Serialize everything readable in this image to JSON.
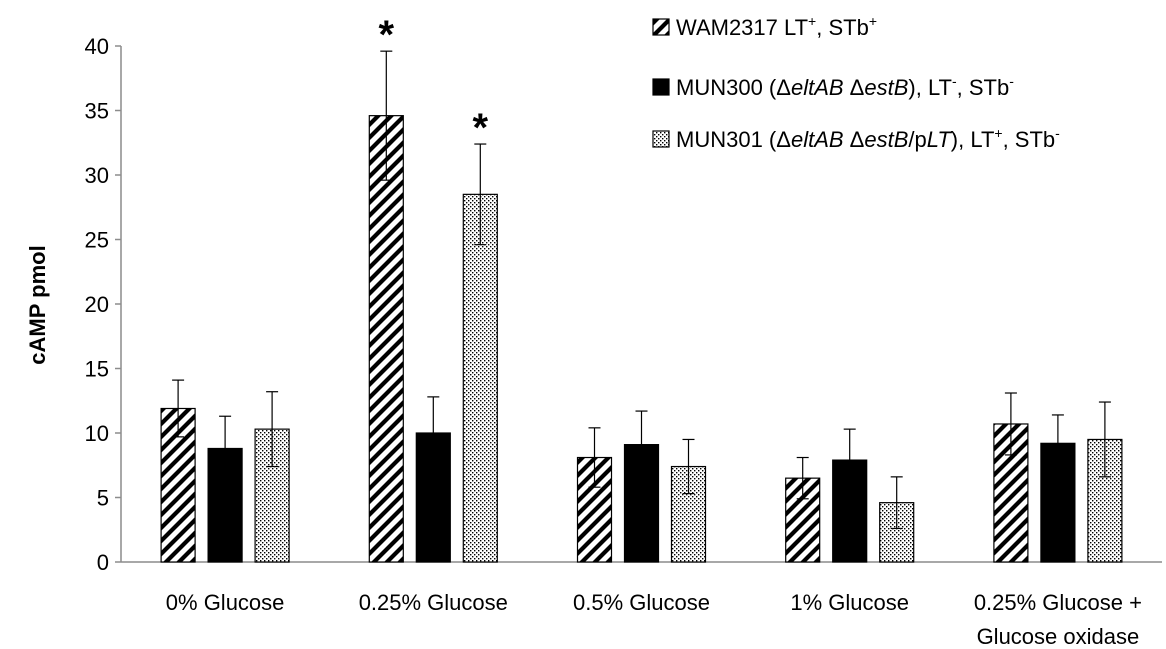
{
  "chart_data": {
    "type": "bar",
    "ylabel": "cAMP pmol",
    "ylim": [
      0,
      40
    ],
    "yticks": [
      0,
      5,
      10,
      15,
      20,
      25,
      30,
      35,
      40
    ],
    "categories": [
      [
        "0% Glucose"
      ],
      [
        "0.25% Glucose"
      ],
      [
        "0.5% Glucose"
      ],
      [
        "1% Glucose"
      ],
      [
        "0.25% Glucose   +",
        "Glucose oxidase"
      ]
    ],
    "series": [
      {
        "pattern": "diagonal-hatch",
        "legend_parts": [
          {
            "t": "WAM2317  LT"
          },
          {
            "t": "+",
            "sup": true
          },
          {
            "t": ", STb"
          },
          {
            "t": "+",
            "sup": true
          }
        ],
        "values": [
          11.9,
          34.6,
          8.1,
          6.5,
          10.7
        ],
        "errors": [
          2.2,
          5.0,
          2.3,
          1.6,
          2.4
        ]
      },
      {
        "pattern": "solid-black",
        "legend_parts": [
          {
            "t": "MUN300 (Δ"
          },
          {
            "t": "eltAB",
            "it": true
          },
          {
            "t": " Δ"
          },
          {
            "t": "estB",
            "it": true
          },
          {
            "t": "), LT"
          },
          {
            "t": "-",
            "sup": true
          },
          {
            "t": ", STb"
          },
          {
            "t": "-",
            "sup": true
          }
        ],
        "values": [
          8.8,
          10.0,
          9.1,
          7.9,
          9.2
        ],
        "errors": [
          2.5,
          2.8,
          2.6,
          2.4,
          2.2
        ]
      },
      {
        "pattern": "dotted",
        "legend_parts": [
          {
            "t": "MUN301  (Δ"
          },
          {
            "t": "eltAB",
            "it": true
          },
          {
            "t": " Δ"
          },
          {
            "t": "estB",
            "it": true
          },
          {
            "t": "/p"
          },
          {
            "t": "LT",
            "it": true
          },
          {
            "t": "), LT"
          },
          {
            "t": "+",
            "sup": true
          },
          {
            "t": ", STb"
          },
          {
            "t": "-",
            "sup": true
          }
        ],
        "values": [
          10.3,
          28.5,
          7.4,
          4.6,
          9.5
        ],
        "errors": [
          2.9,
          3.9,
          2.1,
          2.0,
          2.9
        ]
      }
    ],
    "annotations": [
      {
        "text": "*",
        "category": 1,
        "series": 0
      },
      {
        "text": "*",
        "category": 1,
        "series": 2
      }
    ],
    "legend_position": "top-right",
    "grid": false
  }
}
